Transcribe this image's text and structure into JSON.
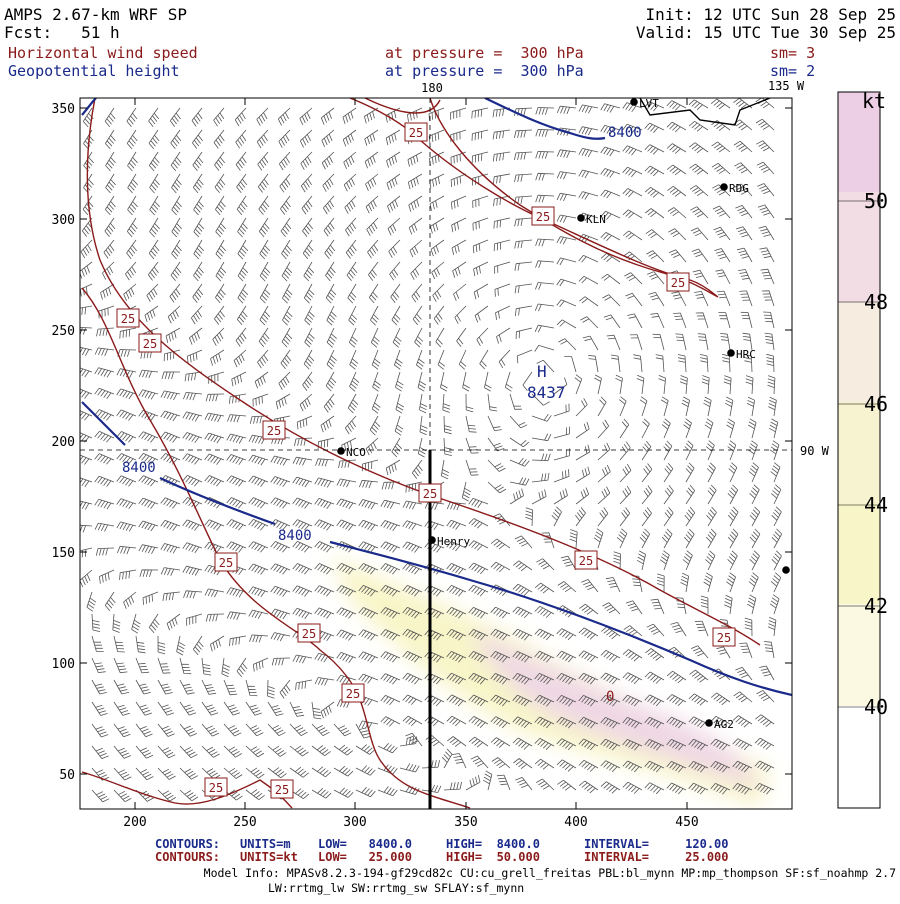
{
  "header": {
    "model": "AMPS 2.67-km WRF SP",
    "fcst": "Fcst:   51 h",
    "init": "Init: 12 UTC Sun 28 Sep 25",
    "valid": "Valid: 15 UTC Tue 30 Sep 25",
    "field1": "Horizontal wind speed",
    "field1_level": "at pressure =  300 hPa",
    "field1_sm": "sm= 3",
    "field2": "Geopotential height",
    "field2_level": "at pressure =  300 hPa",
    "field2_sm": "sm= 2"
  },
  "map": {
    "lon_labels": {
      "top": "180",
      "topright": "135 W",
      "right": "90 W"
    },
    "x_ticks": [
      "200",
      "250",
      "300",
      "350",
      "400",
      "450"
    ],
    "y_ticks": [
      "350",
      "300",
      "250",
      "200",
      "150",
      "100",
      "50"
    ],
    "stations": [
      {
        "name": "LVT"
      },
      {
        "name": "RDG"
      },
      {
        "name": "KLN"
      },
      {
        "name": "HRC"
      },
      {
        "name": "NCO"
      },
      {
        "name": "Henry"
      },
      {
        "name": "AG2"
      }
    ],
    "high_marker": "H",
    "high_value": "8437",
    "height_label": "8400",
    "wind_label": "25",
    "max_marker": "0"
  },
  "colorbar": {
    "unit": "kt",
    "labels": [
      "50",
      "48",
      "46",
      "44",
      "42",
      "40"
    ],
    "colors": [
      "#eccfe4",
      "#f2dde5",
      "#f6ece0",
      "#f7f2cf",
      "#f8f5c8",
      "#fbf9e1",
      "#ffffff"
    ]
  },
  "footer": {
    "contours_height": {
      "label": "CONTOURS:",
      "units": "UNITS=m",
      "low": "LOW=   8400.0",
      "high": "HIGH=  8400.0",
      "interval": "INTERVAL=     120.00"
    },
    "contours_wind": {
      "label": "CONTOURS:",
      "units": "UNITS=kt",
      "low": "LOW=   25.000",
      "high": "HIGH=  50.000",
      "interval": "INTERVAL=     25.000"
    },
    "model_info_1": "Model Info: MPASv8.2.3-194-gf29cd82c CU:cu_grell_freitas PBL:bl_mynn MP:mp_thompson SF:sf_noahmp 2.7",
    "model_info_2": "LW:rrtmg_lw SW:rrtmg_sw SFLAY:sf_mynn"
  },
  "colors": {
    "height_contour": "#1a2a8b",
    "wind_contour": "#8b1a1a",
    "shade_light": "#f8f5c8",
    "shade_pink": "#efd8e4"
  }
}
